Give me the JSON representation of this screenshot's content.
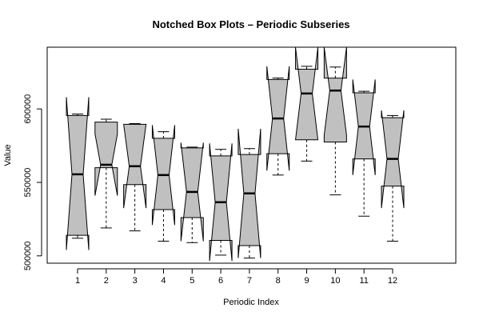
{
  "chart_data": {
    "type": "box",
    "notched": true,
    "title": "Notched Box Plots – Periodic Subseries",
    "xlabel": "Periodic Index",
    "ylabel": "Value",
    "ylim": [
      495000,
      642000
    ],
    "y_ticks": [
      500000,
      550000,
      600000
    ],
    "y_tick_labels": [
      "500000",
      "550000",
      "600000"
    ],
    "colors": {
      "box_fill": "#c0c0c0",
      "stroke": "#000000"
    },
    "boxes": [
      {
        "label": "1",
        "min": 512000,
        "q1": 514000,
        "median": 555500,
        "q3": 595500,
        "max": 596500,
        "notch_lo": 504000,
        "notch_hi": 608000
      },
      {
        "label": "2",
        "min": 519000,
        "q1": 560000,
        "median": 562000,
        "q3": 591000,
        "max": 593000,
        "notch_lo": 541000,
        "notch_hi": 583000
      },
      {
        "label": "3",
        "min": 517000,
        "q1": 548500,
        "median": 561000,
        "q3": 589500,
        "max": 590000,
        "notch_lo": 532500,
        "notch_hi": 589500
      },
      {
        "label": "4",
        "min": 510000,
        "q1": 531500,
        "median": 555000,
        "q3": 580000,
        "max": 584500,
        "notch_lo": 521000,
        "notch_hi": 589000
      },
      {
        "label": "5",
        "min": 509000,
        "q1": 526000,
        "median": 543500,
        "q3": 573500,
        "max": 574000,
        "notch_lo": 510000,
        "notch_hi": 577000
      },
      {
        "label": "6",
        "min": 500500,
        "q1": 510500,
        "median": 536500,
        "q3": 568000,
        "max": 572500,
        "notch_lo": 496500,
        "notch_hi": 576500
      },
      {
        "label": "7",
        "min": 498500,
        "q1": 507000,
        "median": 542500,
        "q3": 569000,
        "max": 573000,
        "notch_lo": 498500,
        "notch_hi": 586500
      },
      {
        "label": "8",
        "min": 555000,
        "q1": 569500,
        "median": 593500,
        "q3": 620000,
        "max": 621000,
        "notch_lo": 558000,
        "notch_hi": 629000
      },
      {
        "label": "9",
        "min": 564500,
        "q1": 579000,
        "median": 610500,
        "q3": 627000,
        "max": 629000,
        "notch_lo": 579000,
        "notch_hi": 642000
      },
      {
        "label": "10",
        "min": 541500,
        "q1": 577500,
        "median": 612500,
        "q3": 621000,
        "max": 628500,
        "notch_lo": 582000,
        "notch_hi": 642000
      },
      {
        "label": "11",
        "min": 527000,
        "q1": 566000,
        "median": 588000,
        "q3": 611000,
        "max": 612000,
        "notch_lo": 555000,
        "notch_hi": 620000
      },
      {
        "label": "12",
        "min": 510000,
        "q1": 547500,
        "median": 566000,
        "q3": 594000,
        "max": 595500,
        "notch_lo": 532500,
        "notch_hi": 599000
      }
    ]
  }
}
